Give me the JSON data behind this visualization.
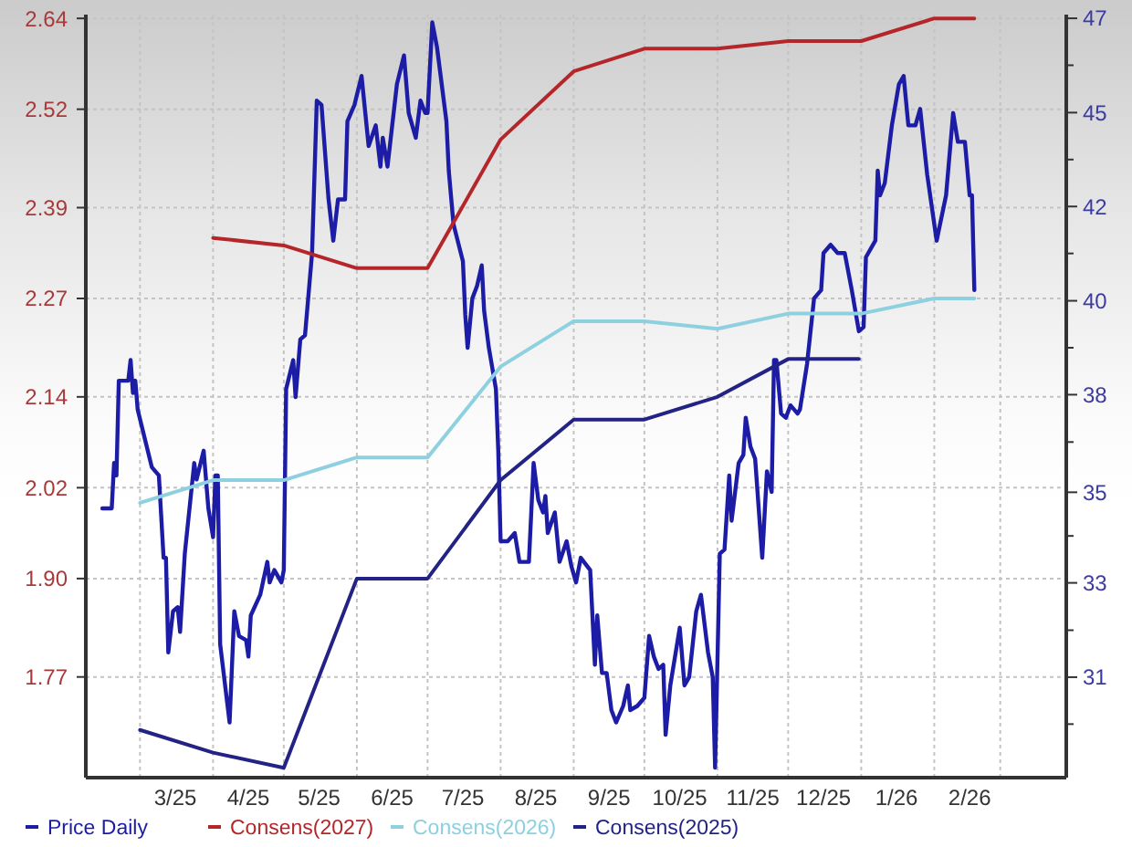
{
  "chart_data": {
    "type": "line",
    "xlim": [
      "2025-02-06",
      "2026-03-29"
    ],
    "xticks": [
      {
        "value": "2025-03-01",
        "label": null
      },
      {
        "value": "2025-04-01",
        "label": null
      },
      {
        "value": "2025-05-01",
        "label": null
      },
      {
        "value": "2025-06-01",
        "label": null
      },
      {
        "value": "2025-07-01",
        "label": null
      },
      {
        "value": "2025-08-01",
        "label": null
      },
      {
        "value": "2025-09-01",
        "label": null
      },
      {
        "value": "2025-10-01",
        "label": null
      },
      {
        "value": "2025-11-01",
        "label": null
      },
      {
        "value": "2025-12-01",
        "label": null
      },
      {
        "value": "2026-01-01",
        "label": null
      },
      {
        "value": "2026-02-01",
        "label": null
      },
      {
        "value": "2026-03-01",
        "label": null
      },
      {
        "value": "2025-03-16",
        "label": "3/25"
      },
      {
        "value": "2025-04-16",
        "label": "4/25"
      },
      {
        "value": "2025-05-16",
        "label": "5/25"
      },
      {
        "value": "2025-06-16",
        "label": "6/25"
      },
      {
        "value": "2025-07-16",
        "label": "7/25"
      },
      {
        "value": "2025-08-16",
        "label": "8/25"
      },
      {
        "value": "2025-09-16",
        "label": "9/25"
      },
      {
        "value": "2025-10-16",
        "label": "10/25"
      },
      {
        "value": "2025-11-16",
        "label": "11/25"
      },
      {
        "value": "2025-12-16",
        "label": "12/25"
      },
      {
        "value": "2026-01-16",
        "label": "1/26"
      },
      {
        "value": "2026-02-16",
        "label": "2/26"
      }
    ],
    "ylim": [
      1.637,
      2.645
    ],
    "yticks": [
      1.77,
      {
        "value": 1.9,
        "label": "1.90"
      },
      2.02,
      2.14,
      2.27,
      2.39,
      2.52,
      2.64
    ],
    "y2lim": [
      28.56,
      47.09
    ],
    "y2ticks": [
      31,
      {
        "value": 33.29,
        "label": "33"
      },
      {
        "value": 35.49,
        "label": "35"
      },
      {
        "value": 37.86,
        "label": "38"
      },
      {
        "value": 40.14,
        "label": "40"
      },
      {
        "value": 42.43,
        "label": "42"
      },
      {
        "value": 44.71,
        "label": "45"
      },
      47,
      {
        "value": 29.86,
        "label": null
      },
      {
        "value": 32.14,
        "label": null
      },
      {
        "value": 34.43,
        "label": null
      },
      {
        "value": 36.71,
        "label": null
      },
      {
        "value": 39,
        "label": null
      },
      {
        "value": 41.29,
        "label": null
      },
      {
        "value": 43.57,
        "label": null
      },
      {
        "value": 45.86,
        "label": null
      }
    ],
    "grid": true,
    "legend": "bottom",
    "series": [
      {
        "name": "Price Daily",
        "color": "#1c1ca6",
        "axis": "y2",
        "x": [
          "2025-02-13",
          "2025-02-17",
          "2025-02-18",
          "2025-02-19",
          "2025-02-20",
          "2025-02-24",
          "2025-02-25",
          "2025-02-26",
          "2025-02-27",
          "2025-02-28",
          "2025-03-06",
          "2025-03-09",
          "2025-03-11",
          "2025-03-12",
          "2025-03-13",
          "2025-03-15",
          "2025-03-17",
          "2025-03-18",
          "2025-03-20",
          "2025-03-24",
          "2025-03-25",
          "2025-03-28",
          "2025-03-30",
          "2025-04-01",
          "2025-04-02",
          "2025-04-03",
          "2025-04-04",
          "2025-04-08",
          "2025-04-10",
          "2025-04-12",
          "2025-04-15",
          "2025-04-16",
          "2025-04-17",
          "2025-04-21",
          "2025-04-24",
          "2025-04-25",
          "2025-04-27",
          "2025-04-30",
          "2025-05-01",
          "2025-05-02",
          "2025-05-05",
          "2025-05-06",
          "2025-05-08",
          "2025-05-10",
          "2025-05-13",
          "2025-05-15",
          "2025-05-17",
          "2025-05-20",
          "2025-05-22",
          "2025-05-24",
          "2025-05-27",
          "2025-05-28",
          "2025-05-31",
          "2025-06-03",
          "2025-06-06",
          "2025-06-09",
          "2025-06-11",
          "2025-06-12",
          "2025-06-14",
          "2025-06-18",
          "2025-06-21",
          "2025-06-23",
          "2025-06-26",
          "2025-06-28",
          "2025-06-30",
          "2025-07-01",
          "2025-07-03",
          "2025-07-05",
          "2025-07-09",
          "2025-07-10",
          "2025-07-12",
          "2025-07-16",
          "2025-07-17",
          "2025-07-18",
          "2025-07-20",
          "2025-07-22",
          "2025-07-24",
          "2025-07-25",
          "2025-07-27",
          "2025-07-30",
          "2025-07-31",
          "2025-08-01",
          "2025-08-04",
          "2025-08-07",
          "2025-08-09",
          "2025-08-13",
          "2025-08-15",
          "2025-08-17",
          "2025-08-19",
          "2025-08-20",
          "2025-08-21",
          "2025-08-24",
          "2025-08-26",
          "2025-08-29",
          "2025-08-31",
          "2025-09-02",
          "2025-09-04",
          "2025-09-08",
          "2025-09-10",
          "2025-09-11",
          "2025-09-13",
          "2025-09-15",
          "2025-09-17",
          "2025-09-19",
          "2025-09-22",
          "2025-09-24",
          "2025-09-25",
          "2025-09-28",
          "2025-10-01",
          "2025-10-03",
          "2025-10-05",
          "2025-10-07",
          "2025-10-09",
          "2025-10-10",
          "2025-10-12",
          "2025-10-16",
          "2025-10-18",
          "2025-10-20",
          "2025-10-23",
          "2025-10-25",
          "2025-10-28",
          "2025-10-30",
          "2025-10-31",
          "2025-11-02",
          "2025-11-04",
          "2025-11-06",
          "2025-11-07",
          "2025-11-10",
          "2025-11-12",
          "2025-11-13",
          "2025-11-15",
          "2025-11-17",
          "2025-11-20",
          "2025-11-22",
          "2025-11-24",
          "2025-11-25",
          "2025-11-26",
          "2025-11-28",
          "2025-11-30",
          "2025-12-02",
          "2025-12-05",
          "2025-12-06",
          "2025-12-09",
          "2025-12-12",
          "2025-12-15",
          "2025-12-16",
          "2025-12-19",
          "2025-12-22",
          "2025-12-24",
          "2025-12-25",
          "2025-12-28",
          "2025-12-31",
          "2026-01-02",
          "2026-01-03",
          "2026-01-07",
          "2026-01-08",
          "2026-01-09",
          "2026-01-11",
          "2026-01-14",
          "2026-01-17",
          "2026-01-19",
          "2026-01-21",
          "2026-01-24",
          "2026-01-26",
          "2026-01-29",
          "2026-02-02",
          "2026-02-06",
          "2026-02-09",
          "2026-02-11",
          "2026-02-14",
          "2026-02-16",
          "2026-02-17",
          "2026-02-18"
        ],
        "values": [
          35.1,
          35.1,
          36.2,
          35.9,
          38.2,
          38.2,
          38.7,
          37.9,
          38.2,
          37.5,
          36.1,
          35.9,
          33.9,
          33.9,
          31.6,
          32.6,
          32.7,
          32.1,
          34.0,
          36.2,
          35.8,
          36.5,
          35.1,
          34.4,
          35.9,
          35.9,
          31.8,
          29.9,
          32.6,
          32.0,
          31.9,
          31.5,
          32.5,
          33.0,
          33.8,
          33.3,
          33.6,
          33.3,
          33.6,
          38.0,
          38.7,
          37.8,
          39.2,
          39.3,
          41.3,
          45.0,
          44.9,
          42.6,
          41.6,
          42.6,
          42.6,
          44.5,
          44.9,
          45.6,
          43.9,
          44.4,
          43.4,
          44.1,
          43.4,
          45.4,
          46.1,
          44.7,
          44.1,
          45.0,
          44.7,
          44.7,
          46.9,
          46.3,
          44.5,
          43.3,
          42.0,
          41.1,
          39.8,
          39.0,
          40.2,
          40.5,
          41.0,
          39.9,
          39.0,
          38.0,
          36.5,
          34.3,
          34.3,
          34.5,
          33.8,
          33.8,
          36.2,
          35.3,
          35.0,
          35.4,
          34.5,
          35.0,
          33.8,
          34.3,
          33.7,
          33.3,
          33.9,
          33.6,
          31.3,
          32.5,
          31.1,
          31.1,
          30.2,
          29.9,
          30.3,
          30.8,
          30.2,
          30.3,
          30.5,
          32.0,
          31.5,
          31.2,
          31.3,
          29.6,
          30.8,
          32.2,
          30.8,
          31.0,
          32.6,
          33.0,
          31.6,
          31.0,
          28.8,
          34.0,
          34.1,
          35.9,
          34.8,
          36.2,
          36.4,
          37.3,
          36.6,
          36.3,
          33.9,
          36.0,
          35.5,
          38.7,
          38.7,
          37.4,
          37.3,
          37.6,
          37.4,
          37.5,
          38.6,
          40.2,
          40.4,
          41.3,
          41.5,
          41.3,
          41.3,
          41.3,
          40.4,
          39.4,
          39.5,
          41.2,
          41.6,
          43.3,
          42.7,
          43.0,
          44.4,
          45.4,
          45.6,
          44.4,
          44.4,
          44.8,
          43.2,
          41.6,
          42.7,
          44.7,
          44.0,
          44.0,
          42.7,
          42.7,
          40.4
        ]
      },
      {
        "name": "Consens(2027)",
        "color": "#b5262a",
        "x": [
          "2025-04-01",
          "2025-05-01",
          "2025-06-01",
          "2025-07-01",
          "2025-08-01",
          "2025-09-01",
          "2025-10-01",
          "2025-11-01",
          "2025-12-01",
          "2026-01-01",
          "2026-02-01",
          "2026-02-18"
        ],
        "values": [
          2.35,
          2.34,
          2.31,
          2.31,
          2.48,
          2.57,
          2.6,
          2.6,
          2.61,
          2.61,
          2.64,
          2.64
        ]
      },
      {
        "name": "Consens(2026)",
        "color": "#8dd0e0",
        "x": [
          "2025-03-01",
          "2025-04-01",
          "2025-05-01",
          "2025-06-01",
          "2025-07-01",
          "2025-08-01",
          "2025-09-01",
          "2025-10-01",
          "2025-11-01",
          "2025-12-01",
          "2026-01-01",
          "2026-02-01",
          "2026-02-18"
        ],
        "values": [
          2.0,
          2.03,
          2.03,
          2.06,
          2.06,
          2.18,
          2.24,
          2.24,
          2.23,
          2.25,
          2.25,
          2.27,
          2.27
        ]
      },
      {
        "name": "Consens(2025)",
        "color": "#232386",
        "x": [
          "2025-03-01",
          "2025-04-01",
          "2025-05-01",
          "2025-06-01",
          "2025-07-01",
          "2025-08-01",
          "2025-09-01",
          "2025-10-01",
          "2025-11-01",
          "2025-12-01",
          "2025-12-31"
        ],
        "values": [
          1.7,
          1.67,
          1.65,
          1.9,
          1.9,
          2.03,
          2.11,
          2.11,
          2.14,
          2.19,
          2.19
        ]
      }
    ]
  }
}
